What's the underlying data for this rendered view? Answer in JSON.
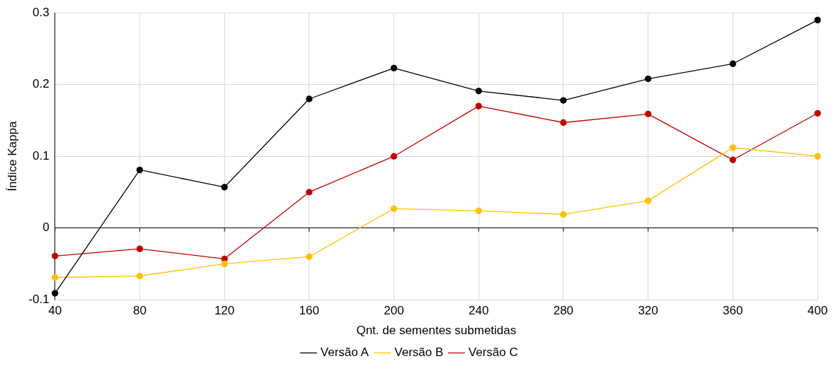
{
  "chart_data": {
    "type": "line",
    "xlabel": "Qnt. de sementes submetidas",
    "ylabel": "Índice Kappa",
    "categories": [
      "40",
      "80",
      "120",
      "160",
      "200",
      "240",
      "280",
      "320",
      "360",
      "400"
    ],
    "series": [
      {
        "name": "Versão A",
        "color": "#000000",
        "values": [
          -0.091,
          0.081,
          0.057,
          0.18,
          0.223,
          0.191,
          0.178,
          0.208,
          0.229,
          0.29
        ]
      },
      {
        "name": "Versão B",
        "color": "#ffc000",
        "values": [
          -0.069,
          -0.067,
          -0.05,
          -0.04,
          0.027,
          0.024,
          0.019,
          0.038,
          0.112,
          0.1
        ]
      },
      {
        "name": "Versão C",
        "color": "#c00000",
        "values": [
          -0.039,
          -0.029,
          -0.043,
          0.05,
          0.1,
          0.17,
          0.147,
          0.159,
          0.095,
          0.16
        ]
      }
    ],
    "ylim": [
      -0.1,
      0.3
    ],
    "yticks": [
      -0.1,
      0,
      0.1,
      0.2,
      0.3
    ],
    "grid": true,
    "legend": "bottom",
    "marker": "circle",
    "line_style": "solid"
  }
}
